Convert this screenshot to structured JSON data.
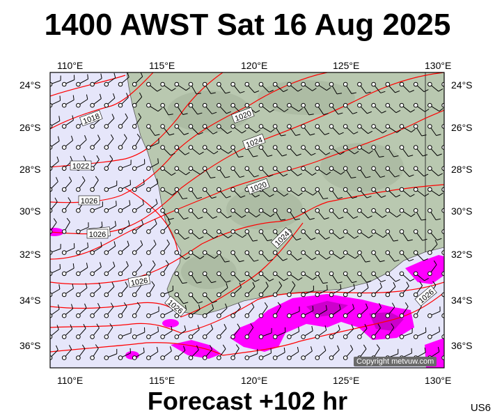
{
  "title": "1400 AWST Sat 16 Aug 2025",
  "forecast": "Forecast +102 hr",
  "model_code": "US6",
  "copyright": "Copyright metvuw.com",
  "axes": {
    "lon_labels": [
      "110°E",
      "115°E",
      "120°E",
      "125°E",
      "130°E"
    ],
    "lat_labels": [
      "24°S",
      "26°S",
      "28°S",
      "30°S",
      "32°S",
      "34°S",
      "36°S"
    ]
  },
  "isobar_labels": [
    "1018",
    "1020",
    "1022",
    "1024",
    "1026",
    "1020",
    "1022",
    "1024",
    "1026",
    "1026",
    "1026",
    "1026"
  ],
  "colors": {
    "ocean": "#e6e6fa",
    "land": "#b9c8b0",
    "isobar": "#ff0000",
    "rain": "#ff00ff",
    "rain_heavy": "#cc00cc",
    "wind_barb": "#000000"
  }
}
